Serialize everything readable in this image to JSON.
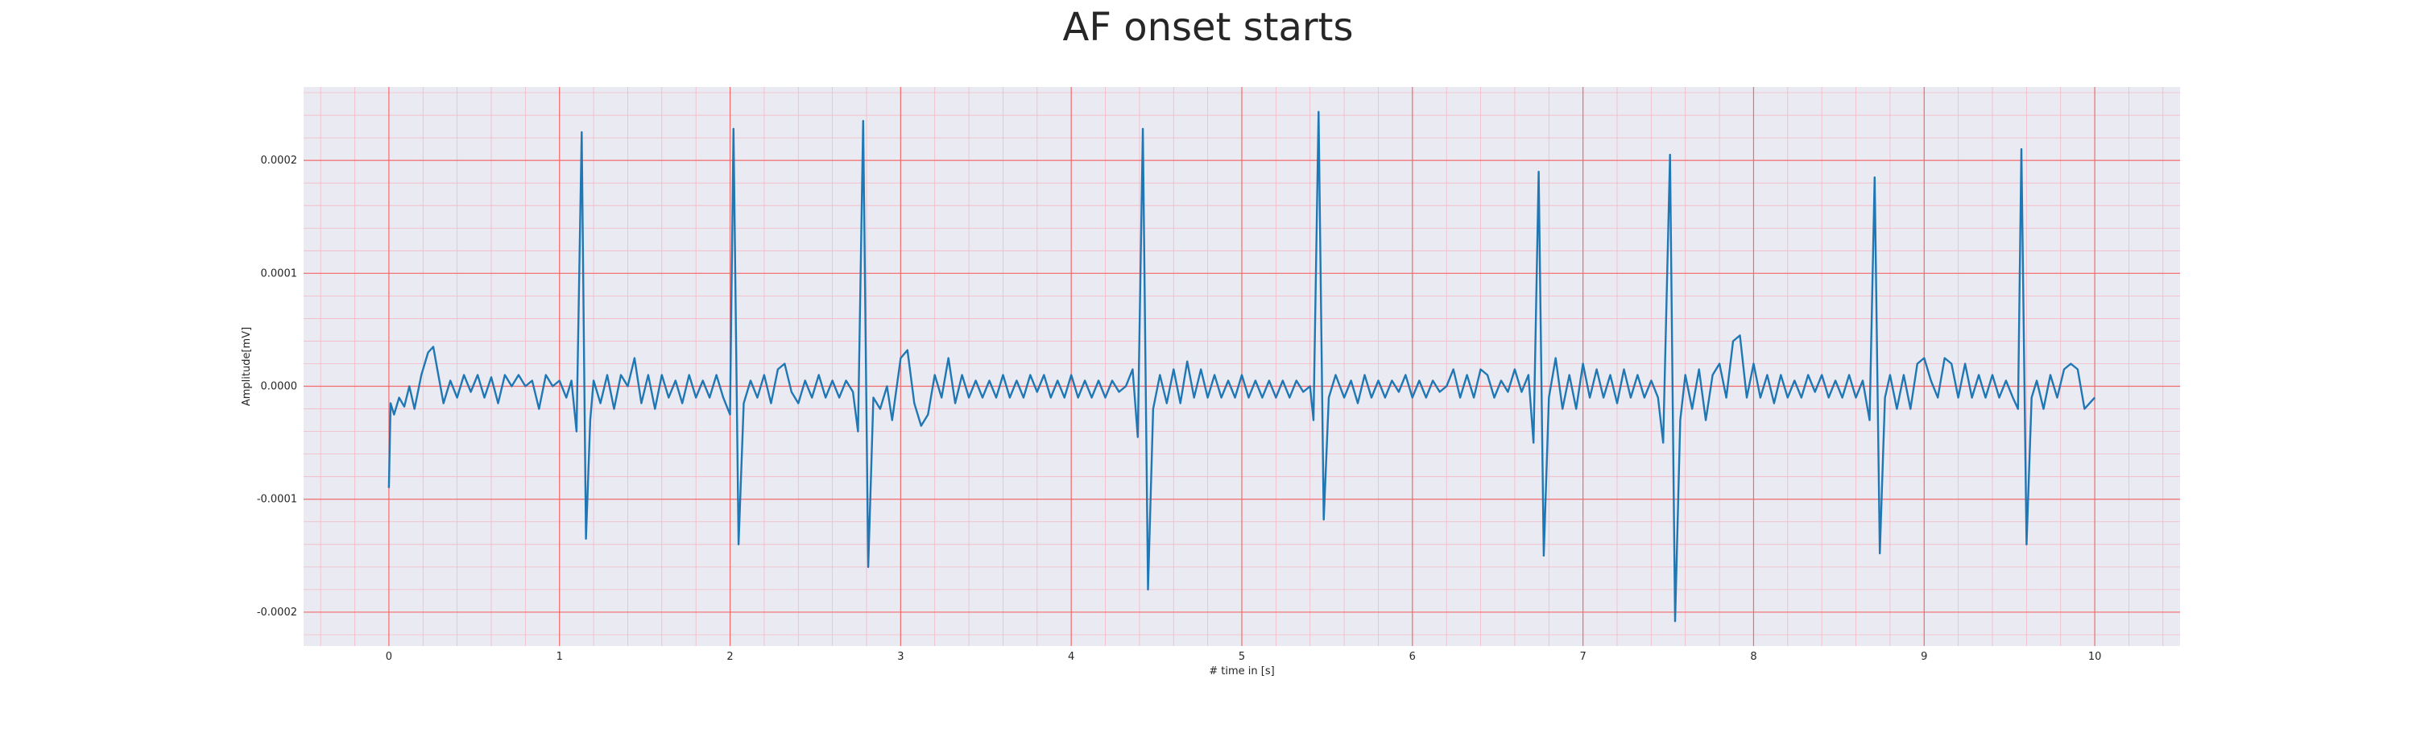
{
  "chart_data": {
    "type": "line",
    "title": "AF onset starts",
    "xlabel": "# time in [s]",
    "ylabel": "Amplitude[mV]",
    "xlim": [
      -0.5,
      10.5
    ],
    "ylim": [
      -0.00023,
      0.000265
    ],
    "x_ticks": [
      0,
      1,
      2,
      3,
      4,
      5,
      6,
      7,
      8,
      9,
      10
    ],
    "x_tick_labels": [
      "0",
      "1",
      "2",
      "3",
      "4",
      "5",
      "6",
      "7",
      "8",
      "9",
      "10"
    ],
    "y_ticks": [
      -0.0002,
      -0.0001,
      0.0,
      0.0001,
      0.0002
    ],
    "y_tick_labels": [
      "-0.0002",
      "-0.0001",
      "0.0000",
      "0.0001",
      "0.0002"
    ],
    "grid": true,
    "minor_grid": true,
    "colors": {
      "plot_background": "#eaeaf2",
      "major_grid": "#f26b6b",
      "minor_grid": "#f4b8c4",
      "line": "#1f77b4"
    },
    "series": [
      {
        "values": [
          [
            0.0,
            -9e-05
          ],
          [
            0.01,
            -1.5e-05
          ],
          [
            0.03,
            -2.5e-05
          ],
          [
            0.06,
            -1e-05
          ],
          [
            0.09,
            -1.8e-05
          ],
          [
            0.12,
            0.0
          ],
          [
            0.15,
            -2e-05
          ],
          [
            0.19,
            1e-05
          ],
          [
            0.23,
            3e-05
          ],
          [
            0.26,
            3.5e-05
          ],
          [
            0.29,
            1e-05
          ],
          [
            0.32,
            -1.5e-05
          ],
          [
            0.36,
            5e-06
          ],
          [
            0.4,
            -1e-05
          ],
          [
            0.44,
            1e-05
          ],
          [
            0.48,
            -5e-06
          ],
          [
            0.52,
            1e-05
          ],
          [
            0.56,
            -1e-05
          ],
          [
            0.6,
            8e-06
          ],
          [
            0.64,
            -1.5e-05
          ],
          [
            0.68,
            1e-05
          ],
          [
            0.72,
            0.0
          ],
          [
            0.76,
            1e-05
          ],
          [
            0.8,
            0.0
          ],
          [
            0.84,
            5e-06
          ],
          [
            0.88,
            -2e-05
          ],
          [
            0.92,
            1e-05
          ],
          [
            0.96,
            0.0
          ],
          [
            1.0,
            5e-06
          ],
          [
            1.04,
            -1e-05
          ],
          [
            1.07,
            5e-06
          ],
          [
            1.1,
            -4e-05
          ],
          [
            1.13,
            0.000225
          ],
          [
            1.155,
            -0.000135
          ],
          [
            1.18,
            -3e-05
          ],
          [
            1.2,
            5e-06
          ],
          [
            1.24,
            -1.5e-05
          ],
          [
            1.28,
            1e-05
          ],
          [
            1.32,
            -2e-05
          ],
          [
            1.36,
            1e-05
          ],
          [
            1.4,
            0.0
          ],
          [
            1.44,
            2.5e-05
          ],
          [
            1.48,
            -1.5e-05
          ],
          [
            1.52,
            1e-05
          ],
          [
            1.56,
            -2e-05
          ],
          [
            1.6,
            1e-05
          ],
          [
            1.64,
            -1e-05
          ],
          [
            1.68,
            5e-06
          ],
          [
            1.72,
            -1.5e-05
          ],
          [
            1.76,
            1e-05
          ],
          [
            1.8,
            -1e-05
          ],
          [
            1.84,
            5e-06
          ],
          [
            1.88,
            -1e-05
          ],
          [
            1.92,
            1e-05
          ],
          [
            1.96,
            -1e-05
          ],
          [
            2.0,
            -2.5e-05
          ],
          [
            2.02,
            0.000228
          ],
          [
            2.05,
            -0.00014
          ],
          [
            2.08,
            -1.5e-05
          ],
          [
            2.12,
            5e-06
          ],
          [
            2.16,
            -1e-05
          ],
          [
            2.2,
            1e-05
          ],
          [
            2.24,
            -1.5e-05
          ],
          [
            2.28,
            1.5e-05
          ],
          [
            2.32,
            2e-05
          ],
          [
            2.36,
            -5e-06
          ],
          [
            2.4,
            -1.5e-05
          ],
          [
            2.44,
            5e-06
          ],
          [
            2.48,
            -1e-05
          ],
          [
            2.52,
            1e-05
          ],
          [
            2.56,
            -1e-05
          ],
          [
            2.6,
            5e-06
          ],
          [
            2.64,
            -1e-05
          ],
          [
            2.68,
            5e-06
          ],
          [
            2.72,
            -5e-06
          ],
          [
            2.75,
            -4e-05
          ],
          [
            2.78,
            0.000235
          ],
          [
            2.81,
            -0.00016
          ],
          [
            2.84,
            -1e-05
          ],
          [
            2.88,
            -2e-05
          ],
          [
            2.92,
            0.0
          ],
          [
            2.95,
            -3e-05
          ],
          [
            3.0,
            2.5e-05
          ],
          [
            3.04,
            3.2e-05
          ],
          [
            3.08,
            -1.5e-05
          ],
          [
            3.12,
            -3.5e-05
          ],
          [
            3.16,
            -2.5e-05
          ],
          [
            3.2,
            1e-05
          ],
          [
            3.24,
            -1e-05
          ],
          [
            3.28,
            2.5e-05
          ],
          [
            3.32,
            -1.5e-05
          ],
          [
            3.36,
            1e-05
          ],
          [
            3.4,
            -1e-05
          ],
          [
            3.44,
            5e-06
          ],
          [
            3.48,
            -1e-05
          ],
          [
            3.52,
            5e-06
          ],
          [
            3.56,
            -1e-05
          ],
          [
            3.6,
            1e-05
          ],
          [
            3.64,
            -1e-05
          ],
          [
            3.68,
            5e-06
          ],
          [
            3.72,
            -1e-05
          ],
          [
            3.76,
            1e-05
          ],
          [
            3.8,
            -5e-06
          ],
          [
            3.84,
            1e-05
          ],
          [
            3.88,
            -1e-05
          ],
          [
            3.92,
            5e-06
          ],
          [
            3.96,
            -1e-05
          ],
          [
            4.0,
            1e-05
          ],
          [
            4.04,
            -1e-05
          ],
          [
            4.08,
            5e-06
          ],
          [
            4.12,
            -1e-05
          ],
          [
            4.16,
            5e-06
          ],
          [
            4.2,
            -1e-05
          ],
          [
            4.24,
            5e-06
          ],
          [
            4.28,
            -5e-06
          ],
          [
            4.32,
            0.0
          ],
          [
            4.36,
            1.5e-05
          ],
          [
            4.39,
            -4.5e-05
          ],
          [
            4.42,
            0.000228
          ],
          [
            4.45,
            -0.00018
          ],
          [
            4.48,
            -2e-05
          ],
          [
            4.52,
            1e-05
          ],
          [
            4.56,
            -1.5e-05
          ],
          [
            4.6,
            1.5e-05
          ],
          [
            4.64,
            -1.5e-05
          ],
          [
            4.68,
            2.2e-05
          ],
          [
            4.72,
            -1e-05
          ],
          [
            4.76,
            1.5e-05
          ],
          [
            4.8,
            -1e-05
          ],
          [
            4.84,
            1e-05
          ],
          [
            4.88,
            -1e-05
          ],
          [
            4.92,
            5e-06
          ],
          [
            4.96,
            -1e-05
          ],
          [
            5.0,
            1e-05
          ],
          [
            5.04,
            -1e-05
          ],
          [
            5.08,
            5e-06
          ],
          [
            5.12,
            -1e-05
          ],
          [
            5.16,
            5e-06
          ],
          [
            5.2,
            -1e-05
          ],
          [
            5.24,
            5e-06
          ],
          [
            5.28,
            -1e-05
          ],
          [
            5.32,
            5e-06
          ],
          [
            5.36,
            -5e-06
          ],
          [
            5.4,
            0.0
          ],
          [
            5.42,
            -3e-05
          ],
          [
            5.45,
            0.000243
          ],
          [
            5.48,
            -0.000118
          ],
          [
            5.51,
            -1e-05
          ],
          [
            5.55,
            1e-05
          ],
          [
            5.6,
            -1e-05
          ],
          [
            5.64,
            5e-06
          ],
          [
            5.68,
            -1.5e-05
          ],
          [
            5.72,
            1e-05
          ],
          [
            5.76,
            -1e-05
          ],
          [
            5.8,
            5e-06
          ],
          [
            5.84,
            -1e-05
          ],
          [
            5.88,
            5e-06
          ],
          [
            5.92,
            -5e-06
          ],
          [
            5.96,
            1e-05
          ],
          [
            6.0,
            -1e-05
          ],
          [
            6.04,
            5e-06
          ],
          [
            6.08,
            -1e-05
          ],
          [
            6.12,
            5e-06
          ],
          [
            6.16,
            -5e-06
          ],
          [
            6.2,
            0.0
          ],
          [
            6.24,
            1.5e-05
          ],
          [
            6.28,
            -1e-05
          ],
          [
            6.32,
            1e-05
          ],
          [
            6.36,
            -1e-05
          ],
          [
            6.4,
            1.5e-05
          ],
          [
            6.44,
            1e-05
          ],
          [
            6.48,
            -1e-05
          ],
          [
            6.52,
            5e-06
          ],
          [
            6.56,
            -5e-06
          ],
          [
            6.6,
            1.5e-05
          ],
          [
            6.64,
            -5e-06
          ],
          [
            6.68,
            1e-05
          ],
          [
            6.71,
            -5e-05
          ],
          [
            6.74,
            0.00019
          ],
          [
            6.77,
            -0.00015
          ],
          [
            6.8,
            -1e-05
          ],
          [
            6.84,
            2.5e-05
          ],
          [
            6.88,
            -2e-05
          ],
          [
            6.92,
            1e-05
          ],
          [
            6.96,
            -2e-05
          ],
          [
            7.0,
            2e-05
          ],
          [
            7.04,
            -1e-05
          ],
          [
            7.08,
            1.5e-05
          ],
          [
            7.12,
            -1e-05
          ],
          [
            7.16,
            1e-05
          ],
          [
            7.2,
            -1.5e-05
          ],
          [
            7.24,
            1.5e-05
          ],
          [
            7.28,
            -1e-05
          ],
          [
            7.32,
            1e-05
          ],
          [
            7.36,
            -1e-05
          ],
          [
            7.4,
            5e-06
          ],
          [
            7.44,
            -1e-05
          ],
          [
            7.47,
            -5e-05
          ],
          [
            7.51,
            0.000205
          ],
          [
            7.54,
            -0.000208
          ],
          [
            7.57,
            -3e-05
          ],
          [
            7.6,
            1e-05
          ],
          [
            7.64,
            -2e-05
          ],
          [
            7.68,
            1.5e-05
          ],
          [
            7.72,
            -3e-05
          ],
          [
            7.76,
            1e-05
          ],
          [
            7.8,
            2e-05
          ],
          [
            7.84,
            -1e-05
          ],
          [
            7.88,
            4e-05
          ],
          [
            7.92,
            4.5e-05
          ],
          [
            7.96,
            -1e-05
          ],
          [
            8.0,
            2e-05
          ],
          [
            8.04,
            -1e-05
          ],
          [
            8.08,
            1e-05
          ],
          [
            8.12,
            -1.5e-05
          ],
          [
            8.16,
            1e-05
          ],
          [
            8.2,
            -1e-05
          ],
          [
            8.24,
            5e-06
          ],
          [
            8.28,
            -1e-05
          ],
          [
            8.32,
            1e-05
          ],
          [
            8.36,
            -5e-06
          ],
          [
            8.4,
            1e-05
          ],
          [
            8.44,
            -1e-05
          ],
          [
            8.48,
            5e-06
          ],
          [
            8.52,
            -1e-05
          ],
          [
            8.56,
            1e-05
          ],
          [
            8.6,
            -1e-05
          ],
          [
            8.64,
            5e-06
          ],
          [
            8.68,
            -3e-05
          ],
          [
            8.71,
            0.000185
          ],
          [
            8.74,
            -0.000148
          ],
          [
            8.77,
            -1e-05
          ],
          [
            8.8,
            1e-05
          ],
          [
            8.84,
            -2e-05
          ],
          [
            8.88,
            1e-05
          ],
          [
            8.92,
            -2e-05
          ],
          [
            8.96,
            2e-05
          ],
          [
            9.0,
            2.5e-05
          ],
          [
            9.04,
            5e-06
          ],
          [
            9.08,
            -1e-05
          ],
          [
            9.12,
            2.5e-05
          ],
          [
            9.16,
            2e-05
          ],
          [
            9.2,
            -1e-05
          ],
          [
            9.24,
            2e-05
          ],
          [
            9.28,
            -1e-05
          ],
          [
            9.32,
            1e-05
          ],
          [
            9.36,
            -1e-05
          ],
          [
            9.4,
            1e-05
          ],
          [
            9.44,
            -1e-05
          ],
          [
            9.48,
            5e-06
          ],
          [
            9.52,
            -1e-05
          ],
          [
            9.55,
            -2e-05
          ],
          [
            9.57,
            0.00021
          ],
          [
            9.6,
            -0.00014
          ],
          [
            9.63,
            -1e-05
          ],
          [
            9.66,
            5e-06
          ],
          [
            9.7,
            -2e-05
          ],
          [
            9.74,
            1e-05
          ],
          [
            9.78,
            -1e-05
          ],
          [
            9.82,
            1.5e-05
          ],
          [
            9.86,
            2e-05
          ],
          [
            9.9,
            1.5e-05
          ],
          [
            9.94,
            -2e-05
          ],
          [
            9.97,
            -1.5e-05
          ],
          [
            10.0,
            -1e-05
          ]
        ]
      }
    ]
  }
}
